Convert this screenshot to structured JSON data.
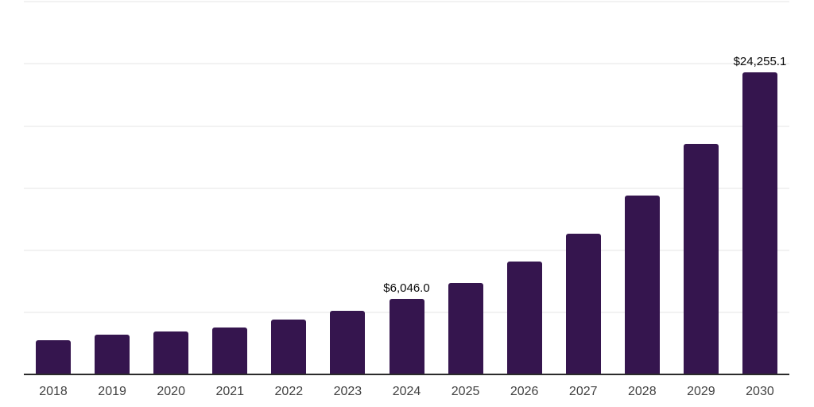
{
  "chart_data": {
    "type": "bar",
    "title": "",
    "xlabel": "",
    "ylabel": "",
    "categories": [
      "2018",
      "2019",
      "2020",
      "2021",
      "2022",
      "2023",
      "2024",
      "2025",
      "2026",
      "2027",
      "2028",
      "2029",
      "2030"
    ],
    "values": [
      2700,
      3140,
      3370,
      3730,
      4370,
      5040,
      6046.0,
      7320,
      9000,
      11250,
      14320,
      18500,
      24255.1
    ],
    "currency_prefix": "$",
    "data_labels": [
      {
        "category": "2024",
        "text": "$6,046.0"
      },
      {
        "category": "2030",
        "text": "$24,255.1"
      }
    ],
    "ylim": [
      0,
      30000
    ],
    "gridline_values": [
      5000,
      10000,
      15000,
      20000,
      25000,
      30000
    ],
    "grid": "horizontal-only",
    "legend": "none",
    "y_axis_tick_labels": "none",
    "colors": {
      "bar": "#35154E",
      "gridline": "#f2f2f2",
      "axis_line": "#2b2b2b",
      "data_label": "#0a0a0a",
      "tick_label": "#424242",
      "background": "#ffffff"
    }
  }
}
